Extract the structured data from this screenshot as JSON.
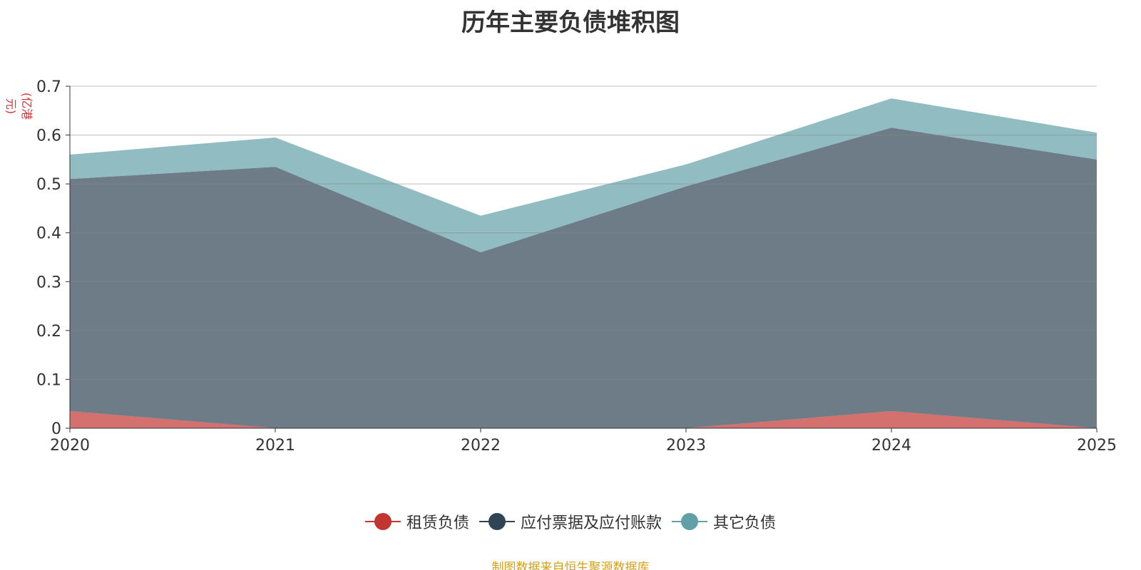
{
  "chart_data": {
    "type": "area",
    "stacked": true,
    "title": "历年主要负债堆积图",
    "unit": "(亿港元)",
    "x": [
      "2020",
      "2021",
      "2022",
      "2023",
      "2024",
      "2025"
    ],
    "ylim": [
      0,
      0.7
    ],
    "yticks": [
      "0",
      "0.1",
      "0.2",
      "0.3",
      "0.4",
      "0.5",
      "0.6",
      "0.7"
    ],
    "grid": true,
    "legend_position": "bottom",
    "series": [
      {
        "name": "租赁负债",
        "color": "#c23531",
        "values": [
          0.035,
          0.0,
          0.0,
          0.0,
          0.035,
          0.0
        ]
      },
      {
        "name": "应付票据及应付账款",
        "color": "#2f4554",
        "values": [
          0.475,
          0.535,
          0.36,
          0.495,
          0.58,
          0.55
        ]
      },
      {
        "name": "其它负债",
        "color": "#61a0a8",
        "values": [
          0.05,
          0.06,
          0.075,
          0.045,
          0.06,
          0.055
        ]
      }
    ]
  },
  "source_note": "制图数据来自恒生聚源数据库"
}
